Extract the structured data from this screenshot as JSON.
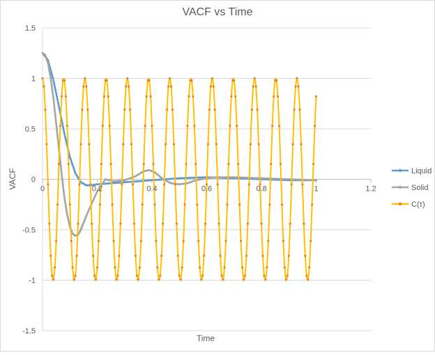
{
  "chart_data": {
    "type": "scatter",
    "title": "VACF vs Time",
    "xlabel": "Time",
    "ylabel": "VACF",
    "xlim": [
      0,
      1.2
    ],
    "ylim": [
      -1.5,
      1.5
    ],
    "x_ticks": [
      0,
      0.2,
      0.4,
      0.6,
      0.8,
      1,
      1.2
    ],
    "x_tick_labels": [
      "0",
      "0.2",
      "0.4",
      "0.6",
      "0.8",
      "1",
      "1.2"
    ],
    "y_ticks": [
      1.5,
      1,
      0.5,
      0,
      -0.5,
      -1,
      -1.5
    ],
    "y_tick_labels": [
      "1.5",
      "1",
      "0.5",
      "0",
      "-0.5",
      "-1",
      "-1.5"
    ],
    "grid": "horizontal",
    "legend_position": "right",
    "series": [
      {
        "name": "Liquid",
        "color": "#5b9bd5",
        "marker_color": "#5b9bd5",
        "x": [
          0,
          0.02,
          0.04,
          0.06,
          0.08,
          0.1,
          0.12,
          0.14,
          0.16,
          0.18,
          0.2,
          0.25,
          0.3,
          0.35,
          0.4,
          0.45,
          0.5,
          0.55,
          0.6,
          0.65,
          0.7,
          0.8,
          0.9,
          1.0
        ],
        "y": [
          1.25,
          1.18,
          0.98,
          0.72,
          0.45,
          0.22,
          0.06,
          -0.03,
          -0.06,
          -0.06,
          -0.05,
          -0.04,
          -0.03,
          -0.02,
          -0.01,
          0.0,
          0.01,
          0.015,
          0.02,
          0.015,
          0.01,
          0.0,
          -0.01,
          -0.01
        ]
      },
      {
        "name": "Solid",
        "color": "#a5a5a5",
        "marker_color": "#a5a5a5",
        "x": [
          0,
          0.01,
          0.02,
          0.03,
          0.04,
          0.05,
          0.06,
          0.07,
          0.08,
          0.09,
          0.1,
          0.11,
          0.12,
          0.13,
          0.14,
          0.15,
          0.17,
          0.2,
          0.23,
          0.26,
          0.3,
          0.34,
          0.37,
          0.39,
          0.41,
          0.44,
          0.47,
          0.5,
          0.53,
          0.56,
          0.6,
          0.64,
          0.7,
          0.8,
          0.9,
          1.0
        ],
        "y": [
          1.25,
          1.23,
          1.15,
          1.0,
          0.8,
          0.55,
          0.3,
          0.05,
          -0.18,
          -0.35,
          -0.47,
          -0.54,
          -0.56,
          -0.55,
          -0.5,
          -0.43,
          -0.3,
          -0.12,
          0.0,
          -0.02,
          -0.01,
          0.03,
          0.08,
          0.09,
          0.07,
          0.0,
          -0.04,
          -0.05,
          -0.04,
          -0.01,
          0.01,
          0.02,
          0.02,
          0.01,
          0.0,
          -0.01
        ]
      },
      {
        "name": "C(τ)",
        "color": "#ffc000",
        "marker_color": "#ed7d31",
        "function": "cos",
        "amplitude": 1,
        "period": 0.0775,
        "x_range": [
          0,
          1.0
        ]
      }
    ]
  }
}
